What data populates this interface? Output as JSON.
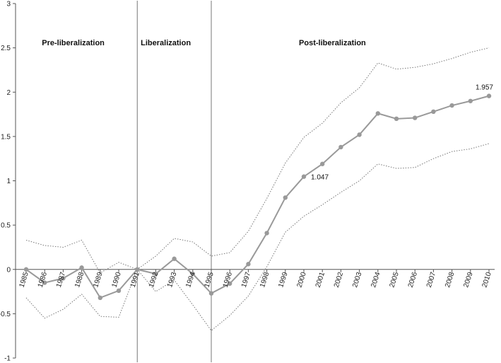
{
  "chart_data": {
    "type": "line",
    "title": "",
    "xlabel": "",
    "ylabel": "",
    "x": [
      "1985",
      "1986",
      "1987",
      "1988",
      "1989",
      "1990",
      "1991",
      "1992",
      "1993",
      "1994",
      "1995",
      "1996",
      "1997",
      "1998",
      "1999",
      "2000",
      "2001",
      "2002",
      "2003",
      "2004",
      "2005",
      "2006",
      "2007",
      "2008",
      "2009",
      "2010"
    ],
    "ylim": [
      -1,
      3
    ],
    "yticks": [
      -1,
      -0.5,
      0,
      0.5,
      1,
      1.5,
      2,
      2.5,
      3
    ],
    "ytick_labels": [
      "-1",
      "-0.5",
      "0",
      "0.5",
      "1",
      "1.5",
      "2",
      "2.5",
      "3"
    ],
    "series": [
      {
        "role": "estimate",
        "style": "solid-with-markers",
        "color": "#999999",
        "values": [
          0.0,
          -0.15,
          -0.1,
          0.02,
          -0.32,
          -0.24,
          0.0,
          -0.05,
          0.12,
          -0.05,
          -0.27,
          -0.16,
          0.06,
          0.41,
          0.81,
          1.047,
          1.19,
          1.38,
          1.52,
          1.76,
          1.7,
          1.71,
          1.78,
          1.85,
          1.9,
          1.957
        ]
      },
      {
        "role": "upper-bound",
        "style": "dotted",
        "color": "#777777",
        "values": [
          0.33,
          0.27,
          0.25,
          0.33,
          -0.04,
          0.08,
          0.0,
          0.15,
          0.35,
          0.31,
          0.15,
          0.19,
          0.43,
          0.8,
          1.2,
          1.49,
          1.65,
          1.88,
          2.05,
          2.33,
          2.26,
          2.28,
          2.32,
          2.38,
          2.45,
          2.5
        ]
      },
      {
        "role": "lower-bound",
        "style": "dotted",
        "color": "#777777",
        "values": [
          -0.32,
          -0.55,
          -0.45,
          -0.28,
          -0.53,
          -0.54,
          0.0,
          -0.25,
          -0.12,
          -0.4,
          -0.69,
          -0.52,
          -0.3,
          0.03,
          0.42,
          0.6,
          0.73,
          0.87,
          1.0,
          1.19,
          1.14,
          1.15,
          1.25,
          1.33,
          1.36,
          1.42
        ]
      }
    ],
    "point_labels": [
      {
        "x": "2000",
        "text": "1.047"
      },
      {
        "x": "2010",
        "text": "1.957"
      }
    ],
    "vertical_lines_at": [
      "1991",
      "1995"
    ],
    "periods": [
      {
        "label": "Pre-liberalization",
        "x": "1988"
      },
      {
        "label": "Liberalization",
        "x": "1993"
      },
      {
        "label": "Post-liberalization",
        "x": "2002"
      }
    ]
  }
}
